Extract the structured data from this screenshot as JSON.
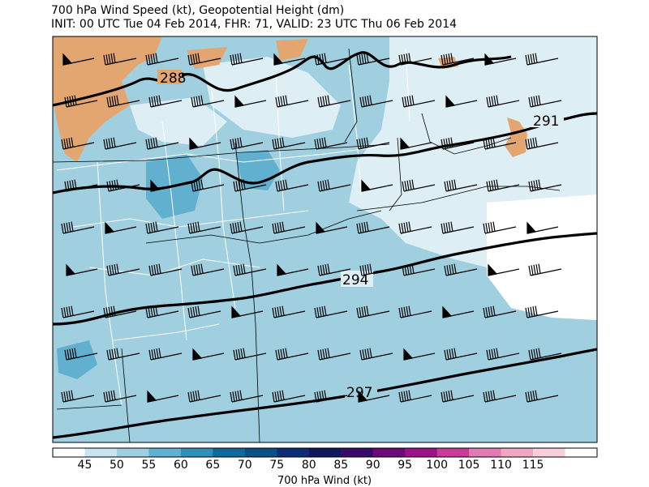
{
  "title": {
    "line1": "700 hPa Wind Speed (kt), Geopotential Height (dm)",
    "line2": "INIT: 00 UTC Tue 04 Feb 2014, FHR: 71, VALID: 23 UTC Thu 06 Feb 2014"
  },
  "contour_labels": [
    "288",
    "291",
    "294",
    "297"
  ],
  "colorbar": {
    "label": "700 hPa Wind (kt)",
    "ticks": [
      "45",
      "50",
      "55",
      "60",
      "65",
      "70",
      "75",
      "80",
      "85",
      "90",
      "95",
      "100",
      "105",
      "110",
      "115"
    ],
    "colors": [
      "#ffffff",
      "#c8e4ef",
      "#9fcfe0",
      "#5fb1cf",
      "#2e8fb8",
      "#0d6a9a",
      "#0a4f86",
      "#0d2e75",
      "#11185e",
      "#3a0a6a",
      "#6b0a78",
      "#9c1288",
      "#c93a99",
      "#e07ab2",
      "#efa7c4",
      "#f7cfd9",
      "#ffffff"
    ]
  },
  "legend_colors": {
    "below_45": "#ffffff",
    "45_50": "#ddeef4",
    "50_55": "#a0cfe0",
    "55_60": "#62b0cf",
    "low_wind": "#e4a670"
  }
}
